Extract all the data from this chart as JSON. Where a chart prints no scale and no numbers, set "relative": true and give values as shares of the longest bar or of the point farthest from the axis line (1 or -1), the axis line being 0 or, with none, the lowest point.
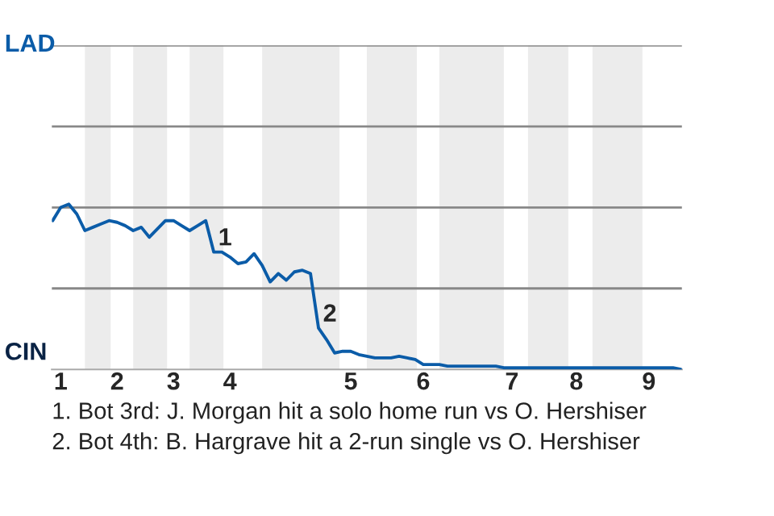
{
  "chart_data": {
    "type": "line",
    "relative": true,
    "categories": [
      null,
      "1",
      null,
      null,
      null,
      null,
      null,
      null,
      "2",
      null,
      null,
      null,
      null,
      null,
      null,
      "3",
      null,
      null,
      null,
      null,
      null,
      null,
      "4",
      null,
      null,
      null,
      null,
      null,
      null,
      null,
      null,
      null,
      null,
      null,
      null,
      null,
      null,
      "5",
      null,
      null,
      null,
      null,
      null,
      null,
      null,
      null,
      "6",
      null,
      null,
      null,
      null,
      null,
      null,
      null,
      null,
      null,
      null,
      "7",
      null,
      null,
      null,
      null,
      null,
      null,
      null,
      "8",
      null,
      null,
      null,
      null,
      null,
      null,
      null,
      null,
      "9",
      null,
      null,
      null,
      null
    ],
    "series": [
      {
        "color": "#0b5ca8",
        "values": [
          0.9,
          0.98,
          1,
          0.94,
          0.84,
          0.86,
          0.88,
          0.9,
          0.89,
          0.87,
          0.84,
          0.86,
          0.8,
          0.85,
          0.9,
          0.9,
          0.87,
          0.84,
          0.87,
          0.9,
          0.71,
          0.71,
          0.68,
          0.64,
          0.65,
          0.7,
          0.63,
          0.53,
          0.58,
          0.54,
          0.59,
          0.6,
          0.58,
          0.25,
          0.18,
          0.1,
          0.11,
          0.11,
          0.09,
          0.08,
          0.07,
          0.07,
          0.07,
          0.08,
          0.07,
          0.06,
          0.03,
          0.03,
          0.03,
          0.02,
          0.02,
          0.02,
          0.02,
          0.02,
          0.02,
          0.02,
          0.01,
          0.01,
          0.01,
          0.01,
          0.01,
          0.01,
          0.01,
          0.01,
          0.01,
          0.01,
          0.01,
          0.01,
          0.01,
          0.01,
          0.01,
          0.01,
          0.01,
          0.01,
          0.01,
          0.01,
          0.01,
          0.01,
          0
        ]
      }
    ],
    "marker": "none",
    "line_style": "solid",
    "ref_lines": [
      {
        "axis": "y",
        "value": 0.49,
        "color": "#888888"
      },
      {
        "axis": "y",
        "value": 0.98,
        "color": "#888888"
      },
      {
        "axis": "y",
        "value": 1.47,
        "color": "#888888"
      },
      {
        "axis": "y",
        "value": 1.96,
        "color": "#888888"
      }
    ],
    "annotations": [
      "LAD",
      "CIN",
      "1",
      "2",
      "1. Bot 3rd: J. Morgan hit a solo home run vs O. Hershiser",
      "2. Bot 4th: B. Hargrave hit a 2-run single vs O. Hershiser"
    ]
  }
}
